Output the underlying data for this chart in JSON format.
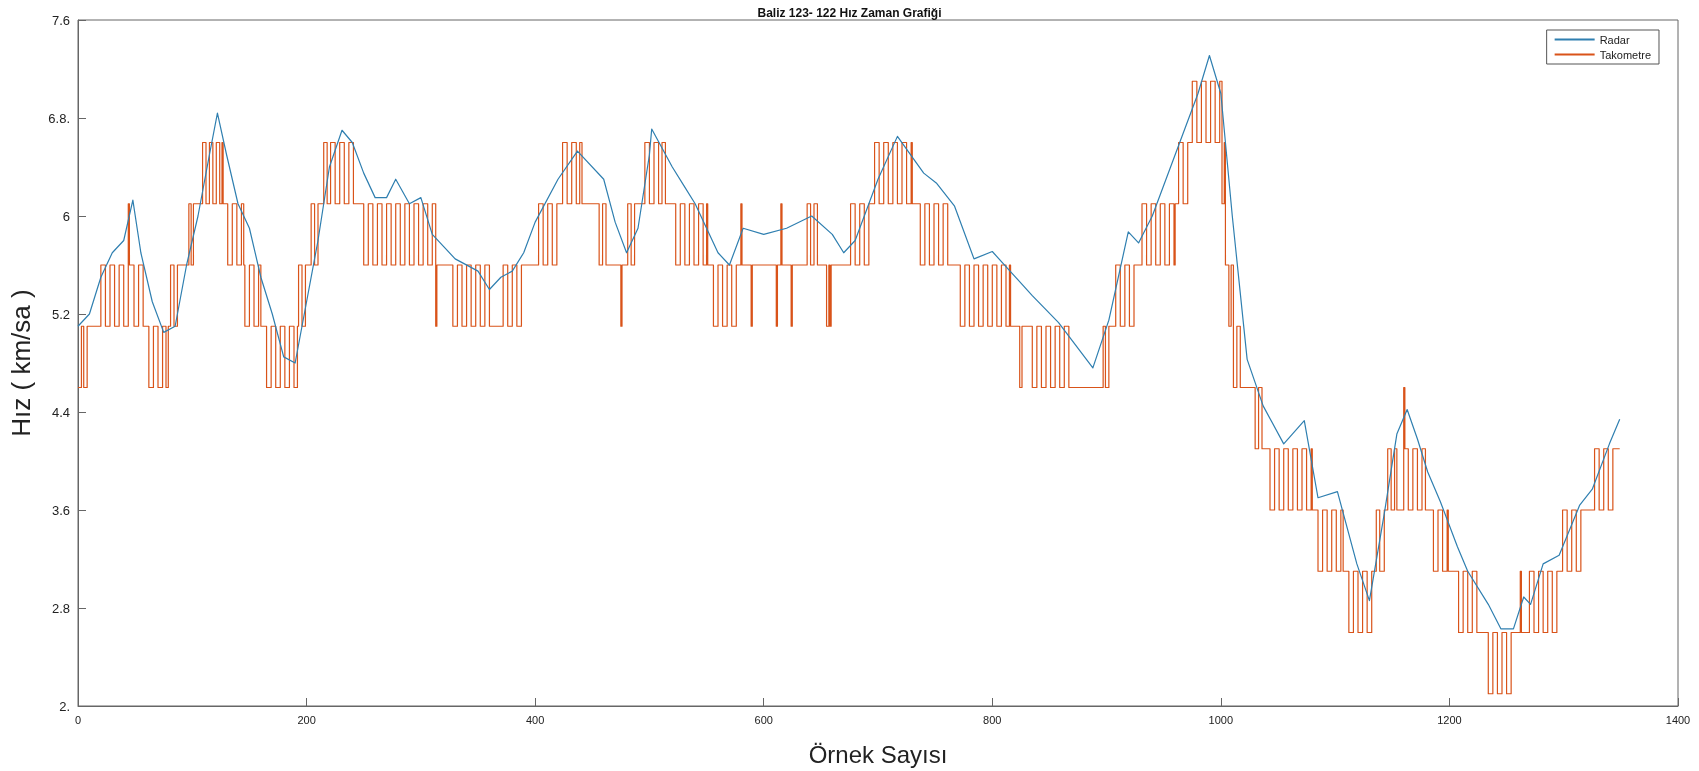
{
  "chart_data": {
    "type": "line",
    "title": "Baliz 123- 122 Hız Zaman Grafiği",
    "xlabel": "Örnek Sayısı",
    "ylabel": "Hız ( km/sa )",
    "xlim": [
      0,
      1400
    ],
    "xticks": [
      0,
      200,
      400,
      600,
      800,
      1000,
      1200,
      1400
    ],
    "ylim": [
      2,
      7.6
    ],
    "yticks": [
      {
        "value": 2,
        "label": "2."
      },
      2.8,
      3.6,
      4.4,
      5.2,
      6,
      {
        "value": 6.8,
        "label": "6.8."
      },
      7.6
    ],
    "grid": false,
    "legend": "top right",
    "marker": "none",
    "line_style": "solid",
    "series": [
      {
        "name": "Radar",
        "color": "#2f7fb0",
        "x": [
          0,
          10,
          20,
          30,
          40,
          48,
          55,
          65,
          75,
          85,
          95,
          105,
          115,
          122,
          130,
          140,
          150,
          160,
          170,
          180,
          190,
          200,
          210,
          220,
          231,
          240,
          250,
          260,
          270,
          278,
          290,
          300,
          310,
          320,
          330,
          350,
          360,
          370,
          380,
          390,
          400,
          420,
          437,
          460,
          470,
          480,
          490,
          500,
          502,
          520,
          530,
          540,
          550,
          560,
          570,
          582,
          600,
          620,
          642,
          660,
          670,
          680,
          700,
          717,
          740,
          751,
          767,
          784,
          800,
          835,
          858,
          888,
          902,
          919,
          928,
          940,
          960,
          980,
          990,
          1000,
          1010,
          1023,
          1037,
          1055,
          1073,
          1085,
          1102,
          1119,
          1130,
          1143,
          1154,
          1163,
          1172,
          1181,
          1192,
          1207,
          1216,
          1234,
          1245,
          1256,
          1265,
          1271,
          1282,
          1296,
          1314,
          1325,
          1340,
          1349
        ],
        "values": [
          5.1,
          5.2,
          5.5,
          5.7,
          5.8,
          6.13,
          5.7,
          5.3,
          5.05,
          5.1,
          5.6,
          6.0,
          6.5,
          6.84,
          6.5,
          6.1,
          5.9,
          5.5,
          5.2,
          4.85,
          4.8,
          5.3,
          5.8,
          6.4,
          6.7,
          6.6,
          6.35,
          6.15,
          6.15,
          6.3,
          6.1,
          6.15,
          5.85,
          5.75,
          5.65,
          5.55,
          5.4,
          5.5,
          5.55,
          5.7,
          5.95,
          6.3,
          6.53,
          6.3,
          5.95,
          5.7,
          5.9,
          6.5,
          6.71,
          6.4,
          6.25,
          6.1,
          5.9,
          5.7,
          5.6,
          5.9,
          5.85,
          5.9,
          6.0,
          5.85,
          5.7,
          5.8,
          6.3,
          6.65,
          6.35,
          6.27,
          6.08,
          5.65,
          5.71,
          5.35,
          5.13,
          4.76,
          5.15,
          5.87,
          5.78,
          6.0,
          6.5,
          7.0,
          7.31,
          7.0,
          6.0,
          4.83,
          4.45,
          4.14,
          4.33,
          3.7,
          3.75,
          3.16,
          2.86,
          3.57,
          4.22,
          4.42,
          4.18,
          3.91,
          3.67,
          3.3,
          3.1,
          2.83,
          2.63,
          2.63,
          2.89,
          2.83,
          3.16,
          3.23,
          3.64,
          3.77,
          4.14,
          4.34
        ]
      },
      {
        "name": "Takometre",
        "color": "#d95319",
        "type": "step",
        "x": [
          0,
          3,
          5,
          8,
          20,
          24,
          28,
          32,
          36,
          40,
          44,
          45,
          49,
          53,
          57,
          62,
          66,
          70,
          74,
          77,
          79,
          81,
          84,
          87,
          97,
          99,
          101,
          109,
          112,
          115,
          118,
          121,
          124,
          126,
          127,
          131,
          135,
          139,
          143,
          145,
          146,
          150,
          154,
          158,
          160,
          165,
          169,
          173,
          177,
          181,
          185,
          189,
          192,
          193,
          196,
          199,
          204,
          207,
          210,
          215,
          218,
          221,
          225,
          229,
          233,
          237,
          241,
          250,
          254,
          258,
          262,
          266,
          270,
          274,
          278,
          282,
          286,
          290,
          294,
          298,
          302,
          306,
          310,
          313,
          314,
          328,
          332,
          336,
          340,
          344,
          348,
          352,
          356,
          360,
          372,
          376,
          380,
          384,
          388,
          403,
          407,
          411,
          415,
          419,
          424,
          428,
          432,
          436,
          439,
          441,
          456,
          459,
          462,
          475,
          476,
          481,
          484,
          487,
          496,
          500,
          504,
          508,
          511,
          514,
          523,
          527,
          531,
          535,
          539,
          543,
          547,
          550,
          551,
          556,
          560,
          564,
          568,
          572,
          576,
          580,
          581,
          589,
          590,
          611,
          612,
          615,
          616,
          624,
          625,
          638,
          641,
          644,
          647,
          655,
          657,
          658,
          659,
          676,
          680,
          684,
          688,
          692,
          695,
          697,
          701,
          705,
          709,
          713,
          717,
          721,
          725,
          729,
          730,
          737,
          741,
          745,
          749,
          753,
          757,
          761,
          772,
          776,
          780,
          784,
          788,
          792,
          796,
          800,
          804,
          808,
          812,
          815,
          816,
          824,
          826,
          835,
          839,
          843,
          847,
          851,
          855,
          859,
          863,
          867,
          897,
          899,
          902,
          908,
          912,
          916,
          920,
          924,
          931,
          935,
          939,
          943,
          947,
          951,
          955,
          959,
          960,
          963,
          967,
          971,
          975,
          979,
          983,
          987,
          991,
          995,
          999,
          1001,
          1003,
          1004,
          1007,
          1009,
          1011,
          1014,
          1017,
          1019,
          1030,
          1033,
          1036,
          1043,
          1047,
          1051,
          1055,
          1059,
          1063,
          1067,
          1071,
          1075,
          1079,
          1080,
          1085,
          1089,
          1093,
          1097,
          1101,
          1105,
          1107,
          1112,
          1116,
          1120,
          1124,
          1128,
          1132,
          1136,
          1139,
          1143,
          1146,
          1149,
          1152,
          1154,
          1160,
          1161,
          1164,
          1168,
          1172,
          1176,
          1179,
          1186,
          1190,
          1194,
          1198,
          1199,
          1208,
          1212,
          1216,
          1220,
          1224,
          1234,
          1238,
          1242,
          1246,
          1250,
          1254,
          1258,
          1262,
          1263,
          1270,
          1274,
          1278,
          1282,
          1286,
          1290,
          1294,
          1299,
          1303,
          1307,
          1311,
          1315,
          1318,
          1327,
          1331,
          1335,
          1339,
          1343,
          1349
        ],
        "values": [
          4.6,
          5.1,
          4.6,
          5.1,
          5.6,
          5.1,
          5.6,
          5.1,
          5.6,
          5.1,
          6.1,
          5.6,
          5.1,
          5.6,
          5.1,
          4.6,
          5.1,
          4.6,
          5.1,
          4.6,
          5.1,
          5.6,
          5.1,
          5.6,
          6.1,
          5.6,
          6.1,
          6.6,
          6.1,
          6.6,
          6.1,
          6.6,
          6.1,
          6.6,
          6.1,
          5.6,
          6.1,
          5.6,
          6.1,
          5.6,
          5.1,
          5.6,
          5.1,
          5.6,
          5.1,
          4.6,
          5.1,
          4.6,
          5.1,
          4.6,
          5.1,
          4.6,
          5.1,
          5.6,
          5.1,
          5.6,
          6.1,
          5.6,
          6.1,
          6.6,
          6.1,
          6.6,
          6.1,
          6.6,
          6.1,
          6.6,
          6.1,
          5.6,
          6.1,
          5.6,
          6.1,
          5.6,
          6.1,
          5.6,
          6.1,
          5.6,
          6.1,
          5.6,
          6.1,
          5.6,
          6.1,
          5.6,
          6.1,
          5.1,
          5.6,
          5.1,
          5.6,
          5.1,
          5.6,
          5.1,
          5.6,
          5.1,
          5.6,
          5.1,
          5.6,
          5.1,
          5.6,
          5.1,
          5.6,
          6.1,
          5.6,
          6.1,
          5.6,
          6.1,
          6.6,
          6.1,
          6.6,
          6.1,
          6.6,
          6.1,
          5.6,
          6.1,
          5.6,
          5.1,
          5.6,
          6.1,
          5.6,
          6.1,
          6.6,
          6.1,
          6.6,
          6.1,
          6.6,
          6.1,
          5.6,
          6.1,
          5.6,
          6.1,
          5.6,
          6.1,
          5.6,
          6.1,
          5.6,
          5.1,
          5.6,
          5.1,
          5.6,
          5.1,
          5.6,
          6.1,
          5.6,
          5.1,
          5.6,
          5.1,
          5.6,
          6.1,
          5.6,
          5.1,
          5.6,
          6.1,
          5.6,
          6.1,
          5.6,
          5.1,
          5.6,
          5.1,
          5.6,
          6.1,
          5.6,
          6.1,
          5.6,
          6.1,
          6.1,
          6.6,
          6.1,
          6.6,
          6.1,
          6.6,
          6.1,
          6.6,
          6.1,
          6.6,
          6.1,
          5.6,
          6.1,
          5.6,
          6.1,
          5.6,
          6.1,
          5.6,
          5.1,
          5.6,
          5.1,
          5.6,
          5.1,
          5.6,
          5.1,
          5.6,
          5.1,
          5.6,
          5.1,
          5.6,
          5.1,
          4.6,
          5.1,
          4.6,
          5.1,
          4.6,
          5.1,
          4.6,
          5.1,
          4.6,
          5.1,
          4.6,
          5.1,
          4.6,
          5.1,
          5.6,
          5.1,
          5.6,
          5.1,
          5.6,
          6.1,
          5.6,
          6.1,
          5.6,
          6.1,
          5.6,
          6.1,
          5.6,
          6.1,
          6.6,
          6.1,
          6.6,
          7.1,
          6.6,
          7.1,
          6.6,
          7.1,
          6.6,
          7.1,
          6.1,
          6.6,
          5.6,
          5.1,
          5.6,
          4.6,
          5.1,
          4.6,
          4.6,
          4.1,
          4.6,
          4.1,
          3.6,
          4.1,
          3.6,
          4.1,
          3.6,
          4.1,
          3.6,
          4.1,
          3.6,
          4.1,
          3.6,
          3.1,
          3.6,
          3.1,
          3.6,
          3.1,
          3.6,
          3.1,
          2.6,
          3.1,
          2.6,
          3.1,
          2.6,
          3.1,
          3.6,
          3.1,
          3.6,
          4.1,
          3.6,
          4.1,
          3.6,
          4.6,
          4.1,
          3.6,
          4.1,
          3.6,
          4.1,
          3.6,
          3.1,
          3.6,
          3.1,
          3.6,
          3.1,
          2.6,
          3.1,
          2.6,
          3.1,
          2.6,
          2.1,
          2.6,
          2.1,
          2.6,
          2.1,
          2.6,
          2.6,
          3.1,
          2.6,
          3.1,
          2.6,
          3.1,
          2.6,
          3.1,
          2.6,
          3.1,
          3.6,
          3.1,
          3.6,
          3.1,
          3.6,
          3.6,
          4.1,
          3.6,
          4.1,
          3.6,
          4.1,
          4.1
        ]
      }
    ]
  }
}
